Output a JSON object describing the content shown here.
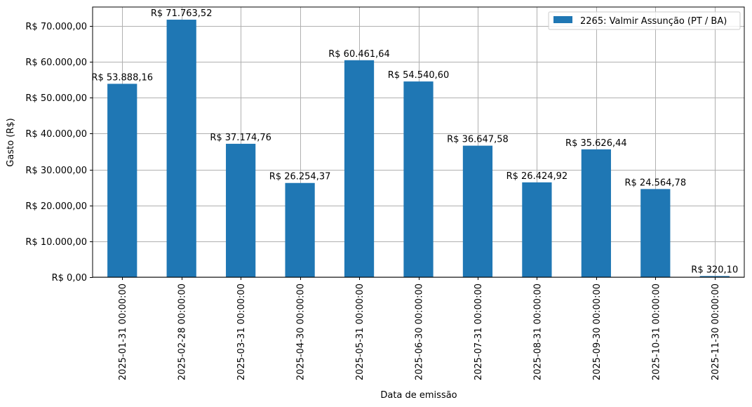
{
  "chart_data": {
    "type": "bar",
    "title": "",
    "xlabel": "Data de emissão",
    "ylabel": "Gasto (R$)",
    "ylim": [
      0,
      75290
    ],
    "grid": true,
    "legend_position": "upper right",
    "bar_color": "#1f77b4",
    "categories": [
      "2025-01-31 00:00:00",
      "2025-02-28 00:00:00",
      "2025-03-31 00:00:00",
      "2025-04-30 00:00:00",
      "2025-05-31 00:00:00",
      "2025-06-30 00:00:00",
      "2025-07-31 00:00:00",
      "2025-08-31 00:00:00",
      "2025-09-30 00:00:00",
      "2025-10-31 00:00:00",
      "2025-11-30 00:00:00"
    ],
    "series": [
      {
        "name": "2265: Valmir Assunção (PT / BA)",
        "values": [
          53888.16,
          71763.52,
          37174.76,
          26254.37,
          60461.64,
          54540.6,
          36647.58,
          26424.92,
          35626.44,
          24564.78,
          320.1
        ],
        "labels": [
          "R$ 53.888,16",
          "R$ 71.763,52",
          "R$ 37.174,76",
          "R$ 26.254,37",
          "R$ 60.461,64",
          "R$ 54.540,60",
          "R$ 36.647,58",
          "R$ 26.424,92",
          "R$ 35.626,44",
          "R$ 24.564,78",
          "R$ 320,10"
        ]
      }
    ],
    "yticks": [
      0,
      10000,
      20000,
      30000,
      40000,
      50000,
      60000,
      70000
    ],
    "ytick_labels": [
      "R$ 0,00",
      "R$ 10.000,00",
      "R$ 20.000,00",
      "R$ 30.000,00",
      "R$ 40.000,00",
      "R$ 50.000,00",
      "R$ 60.000,00",
      "R$ 70.000,00"
    ]
  }
}
